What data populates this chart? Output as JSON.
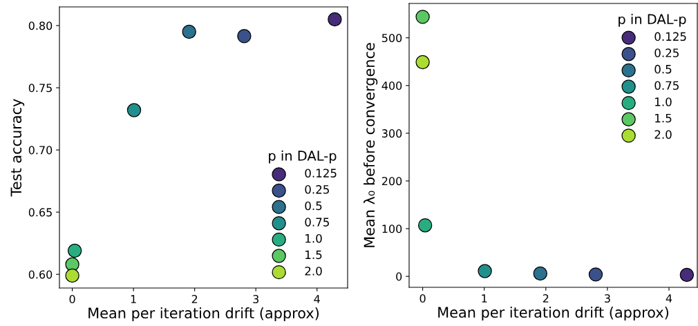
{
  "chart_data": [
    {
      "type": "scatter",
      "xlabel": "Mean per iteration drift (approx)",
      "ylabel": "Test accuracy",
      "legend_title": "p in DAL-p",
      "legend": "bottom right",
      "marker": "circle",
      "grid": false,
      "xlim": [
        -0.21,
        4.5
      ],
      "xticks": [
        0,
        1,
        2,
        3,
        4
      ],
      "ylim": [
        0.589,
        0.815
      ],
      "yticks": [
        {
          "value": 0.6,
          "label": "0.60"
        },
        {
          "value": 0.65,
          "label": "0.65"
        },
        {
          "value": 0.7,
          "label": "0.70"
        },
        {
          "value": 0.75,
          "label": "0.75"
        },
        {
          "value": 0.8,
          "label": "0.80"
        }
      ],
      "series": [
        {
          "name": "0.125",
          "color": "#472c7a",
          "x": [
            4.29
          ],
          "values": [
            0.805
          ]
        },
        {
          "name": "0.25",
          "color": "#3b518b",
          "x": [
            2.81
          ],
          "values": [
            0.7915
          ]
        },
        {
          "name": "0.5",
          "color": "#2c718e",
          "x": [
            1.91
          ],
          "values": [
            0.795
          ]
        },
        {
          "name": "0.75",
          "color": "#21908d",
          "x": [
            1.01
          ],
          "values": [
            0.732
          ]
        },
        {
          "name": "1.0",
          "color": "#27ad81",
          "x": [
            0.04
          ],
          "values": [
            0.619
          ]
        },
        {
          "name": "1.5",
          "color": "#5cc863",
          "x": [
            0.0
          ],
          "values": [
            0.608
          ]
        },
        {
          "name": "2.0",
          "color": "#aadc32",
          "x": [
            0.0
          ],
          "values": [
            0.599
          ]
        }
      ]
    },
    {
      "type": "scatter",
      "xlabel": "Mean per iteration drift (approx)",
      "ylabel": "Mean λ₀ before convergence",
      "legend_title": "p in DAL-p",
      "legend": "top right",
      "marker": "circle",
      "grid": false,
      "xlim": [
        -0.22,
        4.46
      ],
      "xticks": [
        0,
        1,
        2,
        3,
        4
      ],
      "ylim": [
        -23,
        572
      ],
      "yticks": [
        0,
        100,
        200,
        300,
        400,
        500
      ],
      "series": [
        {
          "name": "0.125",
          "color": "#472c7a",
          "x": [
            4.29
          ],
          "values": [
            3
          ]
        },
        {
          "name": "0.25",
          "color": "#3b518b",
          "x": [
            2.81
          ],
          "values": [
            4
          ]
        },
        {
          "name": "0.5",
          "color": "#2c718e",
          "x": [
            1.91
          ],
          "values": [
            6
          ]
        },
        {
          "name": "0.75",
          "color": "#21908d",
          "x": [
            1.01
          ],
          "values": [
            11
          ]
        },
        {
          "name": "1.0",
          "color": "#27ad81",
          "x": [
            0.04
          ],
          "values": [
            107
          ]
        },
        {
          "name": "1.5",
          "color": "#5cc863",
          "x": [
            0.0
          ],
          "values": [
            544
          ]
        },
        {
          "name": "2.0",
          "color": "#aadc32",
          "x": [
            0.0
          ],
          "values": [
            449
          ]
        }
      ]
    }
  ]
}
